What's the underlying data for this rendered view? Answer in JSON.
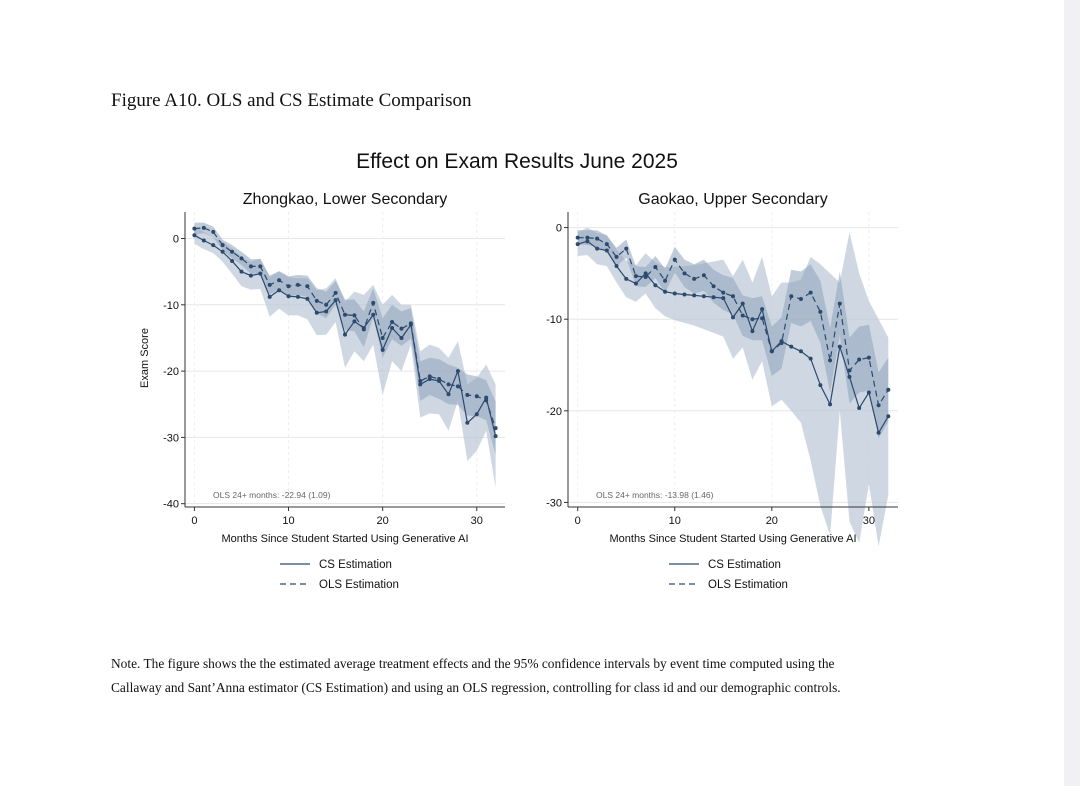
{
  "figure_caption": "Figure A10. OLS and CS Estimate Comparison",
  "note_lines": [
    "Note. The figure shows the the estimated average treatment effects and the 95% confidence intervals by event time computed using the",
    "Callaway and Sant’Anna estimator (CS Estimation) and using an OLS regression, controlling for class id and our demographic controls."
  ],
  "colors": {
    "line": "#2c4a6e",
    "band_cs": "#b6c3d3",
    "band_ols": "#8ea2b9"
  },
  "chart_data": {
    "type": "line",
    "title": "Effect on Exam Results June 2025",
    "ylabel": "Exam Score",
    "legend": [
      "CS Estimation",
      "OLS Estimation"
    ],
    "panels": [
      {
        "subtitle": "Zhongkao, Lower Secondary",
        "xlabel": "Months Since Student Started Using Generative AI",
        "xlim": [
          -1,
          33
        ],
        "ylim": [
          -40.5,
          4
        ],
        "xticks": [
          0,
          10,
          20,
          30
        ],
        "yticks": [
          0,
          -10,
          -20,
          -30,
          -40
        ],
        "annotation": "OLS 24+ months: -22.94 (1.09)",
        "x": [
          0,
          1,
          2,
          3,
          4,
          5,
          6,
          7,
          8,
          9,
          10,
          11,
          12,
          13,
          14,
          15,
          16,
          17,
          18,
          19,
          20,
          21,
          22,
          23,
          24,
          25,
          26,
          27,
          28,
          29,
          30,
          31,
          32
        ],
        "series": [
          {
            "name": "CS Estimation",
            "values": [
              0.5,
              -0.3,
              -1.0,
              -2.0,
              -3.4,
              -5.0,
              -5.6,
              -5.3,
              -8.8,
              -7.8,
              -8.7,
              -8.8,
              -9.1,
              -11.2,
              -11.0,
              -9.3,
              -14.5,
              -12.5,
              -13.5,
              -11.5,
              -16.8,
              -13.5,
              -15.0,
              -13.0,
              -22.0,
              -21.2,
              -21.5,
              -23.5,
              -20.0,
              -27.8,
              -26.5,
              -24.0,
              -29.8
            ],
            "band": [
              [
                1.8,
                1.0,
                0.2,
                -0.5,
                -1.5,
                -2.8,
                -3.5,
                -3.0,
                -5.8,
                -5.0,
                -5.8,
                -6.0,
                -6.0,
                -7.8,
                -7.5,
                -6.0,
                -9.5,
                -8.0,
                -8.5,
                -7.0,
                -10.0,
                -8.5,
                -10.0,
                -10.0,
                -17.0,
                -16.0,
                -16.5,
                -18.0,
                -15.5,
                -22.0,
                -21.0,
                -19.0,
                -22.0
              ],
              [
                -0.8,
                -1.6,
                -2.2,
                -3.5,
                -5.3,
                -7.2,
                -7.7,
                -7.6,
                -11.8,
                -10.6,
                -11.6,
                -11.6,
                -12.2,
                -14.6,
                -14.5,
                -12.6,
                -19.5,
                -17.0,
                -18.5,
                -16.0,
                -23.6,
                -18.5,
                -20.0,
                -16.0,
                -27.0,
                -26.4,
                -26.5,
                -29.0,
                -24.5,
                -33.6,
                -32.0,
                -29.0,
                -37.6
              ]
            ]
          },
          {
            "name": "OLS Estimation",
            "values": [
              1.5,
              1.6,
              1.0,
              -1.0,
              -2.0,
              -3.0,
              -4.2,
              -4.2,
              -7.0,
              -6.3,
              -7.2,
              -7.0,
              -7.2,
              -9.4,
              -10.0,
              -8.2,
              -11.5,
              -11.6,
              -13.7,
              -9.7,
              -15.0,
              -12.6,
              -13.6,
              -12.8,
              -21.5,
              -20.8,
              -21.2,
              -22.0,
              -22.3,
              -23.6,
              -23.8,
              -24.4,
              -28.6
            ],
            "band": [
              [
                2.4,
                2.4,
                1.8,
                -0.2,
                -1.0,
                -2.0,
                -3.1,
                -3.1,
                -5.6,
                -4.9,
                -5.7,
                -5.5,
                -5.6,
                -7.5,
                -8.0,
                -6.4,
                -9.2,
                -9.2,
                -11.0,
                -7.5,
                -12.0,
                -10.0,
                -11.0,
                -10.5,
                -18.5,
                -18.0,
                -18.2,
                -19.0,
                -19.5,
                -20.5,
                -20.8,
                -21.4,
                -24.6
              ],
              [
                0.6,
                0.8,
                0.2,
                -1.8,
                -3.0,
                -4.0,
                -5.3,
                -5.3,
                -8.4,
                -7.7,
                -8.7,
                -8.5,
                -8.8,
                -11.3,
                -12.0,
                -10.0,
                -13.8,
                -14.0,
                -16.4,
                -11.9,
                -18.0,
                -15.2,
                -16.2,
                -15.1,
                -24.5,
                -23.6,
                -24.2,
                -25.0,
                -25.1,
                -26.7,
                -26.8,
                -27.4,
                -32.6
              ]
            ]
          }
        ]
      },
      {
        "subtitle": "Gaokao, Upper Secondary",
        "xlabel": "Months Since Student Started Using Generative AI",
        "xlim": [
          -1,
          33
        ],
        "ylim": [
          -30.5,
          1.7
        ],
        "xticks": [
          0,
          10,
          20,
          30
        ],
        "yticks": [
          0,
          -10,
          -20,
          -30
        ],
        "annotation": "OLS 24+ months: -13.98 (1.46)",
        "x": [
          0,
          1,
          2,
          3,
          4,
          5,
          6,
          7,
          8,
          9,
          10,
          11,
          12,
          13,
          14,
          15,
          16,
          17,
          18,
          19,
          20,
          21,
          22,
          23,
          24,
          25,
          26,
          27,
          28,
          29,
          30,
          31,
          32
        ],
        "series": [
          {
            "name": "CS Estimation",
            "values": [
              -1.8,
              -1.5,
              -2.3,
              -2.5,
              -4.2,
              -5.6,
              -6.1,
              -5.0,
              -6.3,
              -7.0,
              -7.2,
              -7.3,
              -7.4,
              -7.5,
              -7.6,
              -7.7,
              -9.8,
              -8.3,
              -11.3,
              -8.9,
              -13.5,
              -12.4,
              -13.0,
              -13.5,
              -14.3,
              -17.2,
              -19.3,
              -13.0,
              -16.3,
              -19.7,
              -18.0,
              -22.4,
              -20.6
            ],
            "band": [
              [
                -0.5,
                0.0,
                -0.6,
                -0.8,
                -2.4,
                -3.6,
                -4.1,
                -2.8,
                -3.8,
                -4.3,
                -4.3,
                -4.2,
                -4.1,
                -3.9,
                -3.7,
                -3.5,
                -5.3,
                -3.5,
                -6.0,
                -3.2,
                -7.5,
                -6.0,
                -6.0,
                -5.7,
                -3.2,
                -4.0,
                -5.0,
                -6.0,
                -0.5,
                -5.0,
                -8.0,
                -10.0,
                -12.0
              ],
              [
                -3.1,
                -3.0,
                -4.0,
                -4.2,
                -6.0,
                -7.6,
                -8.1,
                -7.2,
                -8.8,
                -9.7,
                -10.1,
                -10.4,
                -10.7,
                -11.1,
                -11.5,
                -11.9,
                -14.3,
                -13.1,
                -16.6,
                -14.6,
                -19.5,
                -18.8,
                -20.0,
                -21.3,
                -25.4,
                -30.4,
                -33.6,
                -20.0,
                -32.1,
                -34.4,
                -28.0,
                -34.8,
                -29.2
              ]
            ]
          },
          {
            "name": "OLS Estimation",
            "values": [
              -1.1,
              -1.1,
              -1.2,
              -1.8,
              -3.2,
              -2.3,
              -5.3,
              -5.4,
              -4.3,
              -5.8,
              -3.5,
              -5.0,
              -5.6,
              -5.2,
              -6.4,
              -7.1,
              -7.5,
              -9.6,
              -10.0,
              -9.9,
              -13.5,
              -12.6,
              -7.5,
              -7.8,
              -7.1,
              -9.2,
              -14.5,
              -8.3,
              -15.6,
              -14.4,
              -14.2,
              -19.4,
              -17.7
            ],
            "band": [
              [
                -0.3,
                -0.3,
                -0.3,
                -0.9,
                -2.2,
                -1.3,
                -4.2,
                -4.3,
                -3.1,
                -4.5,
                -2.1,
                -3.5,
                -4.0,
                -3.5,
                -4.6,
                -5.2,
                -5.5,
                -7.4,
                -7.7,
                -7.5,
                -10.8,
                -9.8,
                -4.6,
                -4.8,
                -4.0,
                -5.8,
                -11.0,
                -4.8,
                -12.0,
                -10.8,
                -10.6,
                -15.8,
                -14.2
              ],
              [
                -1.9,
                -1.9,
                -2.1,
                -2.7,
                -4.2,
                -3.3,
                -6.4,
                -6.5,
                -5.5,
                -7.1,
                -4.9,
                -6.5,
                -7.2,
                -6.9,
                -8.2,
                -9.0,
                -9.5,
                -11.8,
                -12.3,
                -12.3,
                -16.2,
                -15.4,
                -10.4,
                -10.8,
                -10.2,
                -12.6,
                -18.0,
                -11.8,
                -19.2,
                -18.0,
                -17.8,
                -23.0,
                -21.2
              ]
            ]
          }
        ]
      }
    ]
  }
}
